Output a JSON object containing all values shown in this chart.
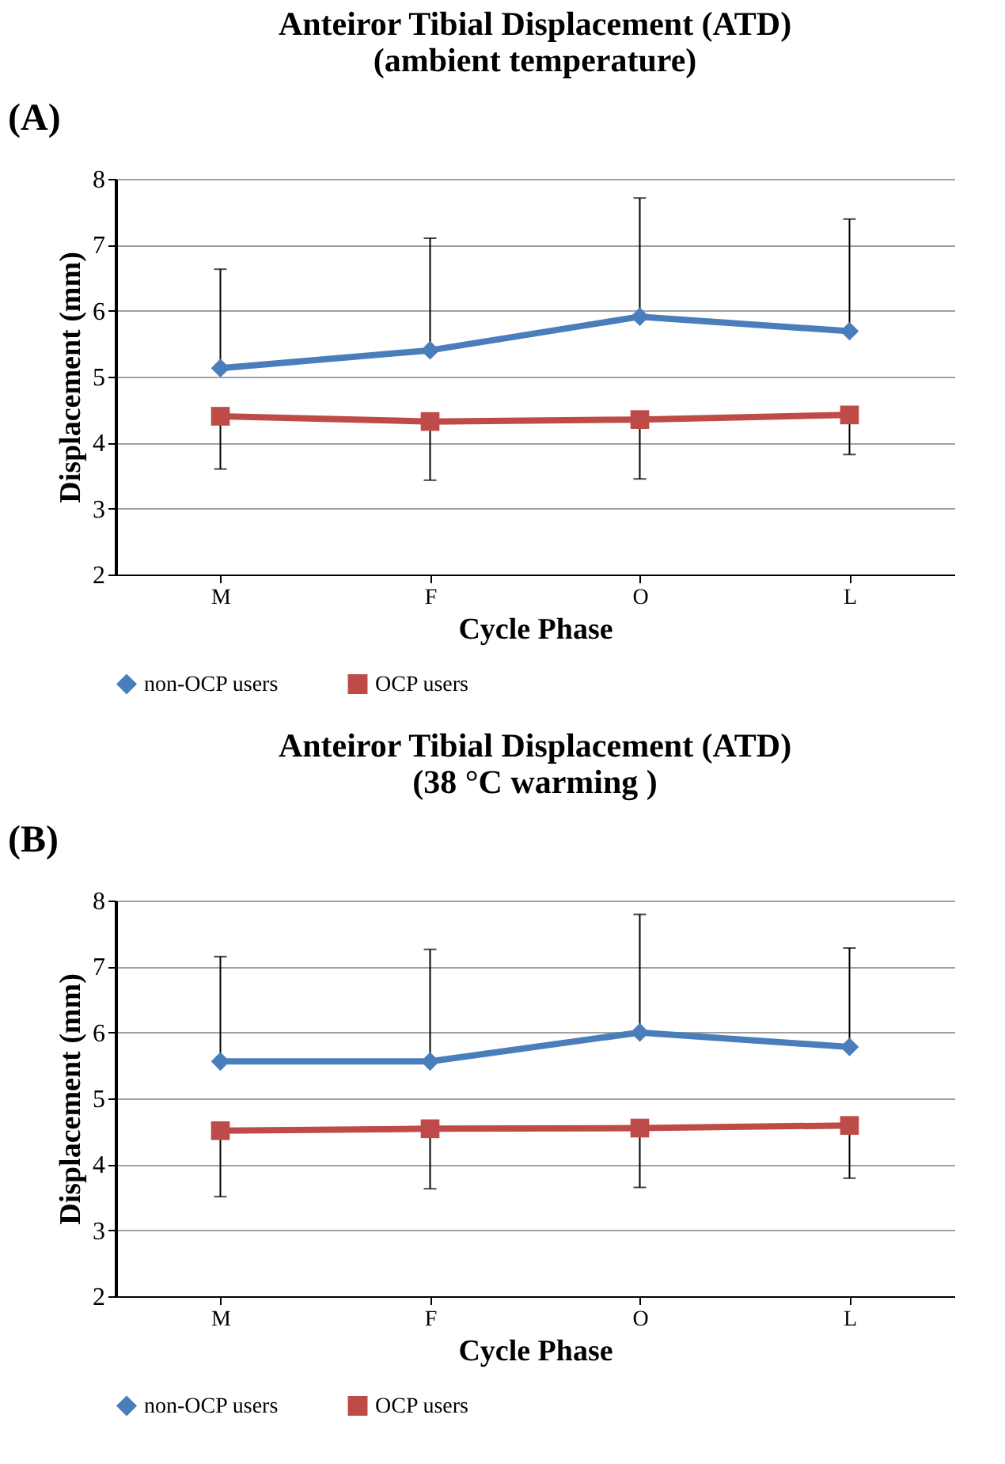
{
  "chart_data": [
    {
      "type": "line",
      "title": "Anteiror Tibial Displacement (ATD)\n(ambient temperature)",
      "annotations": [
        "(A)"
      ],
      "xlabel": "Cycle Phase",
      "ylabel": "Displacement (mm)",
      "categories": [
        "M",
        "F",
        "O",
        "L"
      ],
      "ylim": [
        2,
        8
      ],
      "yticks": [
        2,
        3,
        4,
        5,
        6,
        7,
        8
      ],
      "grid": "y",
      "legend": "bottom",
      "series": [
        {
          "name": "non-OCP users",
          "color": "#4a7ebb",
          "marker": "diamond",
          "values": [
            5.13,
            5.4,
            5.91,
            5.69
          ],
          "errors": [
            [
              5.13,
              6.63
            ],
            [
              5.4,
              7.1
            ],
            [
              5.91,
              7.71
            ],
            [
              5.69,
              7.39
            ]
          ]
        },
        {
          "name": "OCP users",
          "color": "#be4b48",
          "marker": "square",
          "values": [
            4.4,
            4.32,
            4.35,
            4.42
          ],
          "errors": [
            [
              3.6,
              4.4
            ],
            [
              3.43,
              4.32
            ],
            [
              3.45,
              4.35
            ],
            [
              3.82,
              4.42
            ]
          ]
        }
      ]
    },
    {
      "type": "line",
      "title": "Anteiror Tibial Displacement (ATD)\n(38 °C warming )",
      "annotations": [
        "(B)"
      ],
      "xlabel": "Cycle Phase",
      "ylabel": "Displacement (mm)",
      "categories": [
        "M",
        "F",
        "O",
        "L"
      ],
      "ylim": [
        2,
        8
      ],
      "yticks": [
        2,
        3,
        4,
        5,
        6,
        7,
        8
      ],
      "grid": "y",
      "legend": "bottom",
      "series": [
        {
          "name": "non-OCP users",
          "color": "#4a7ebb",
          "marker": "diamond",
          "values": [
            5.56,
            5.56,
            6.0,
            5.78
          ],
          "errors": [
            [
              5.56,
              7.15
            ],
            [
              5.56,
              7.26
            ],
            [
              6.0,
              7.79
            ],
            [
              5.78,
              7.28
            ]
          ]
        },
        {
          "name": "OCP users",
          "color": "#be4b48",
          "marker": "square",
          "values": [
            4.51,
            4.54,
            4.55,
            4.59
          ],
          "errors": [
            [
              3.51,
              4.51
            ],
            [
              3.63,
              4.54
            ],
            [
              3.65,
              4.55
            ],
            [
              3.79,
              4.59
            ]
          ]
        }
      ]
    }
  ]
}
